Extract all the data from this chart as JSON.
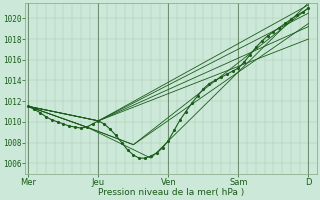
{
  "background_color": "#cce8d8",
  "plot_bg_color": "#cce8d8",
  "line_color": "#1a5c1a",
  "ylabel": "Pression niveau de la mer( hPa )",
  "ylim": [
    1005.0,
    1021.5
  ],
  "yticks": [
    1006,
    1008,
    1010,
    1012,
    1014,
    1016,
    1018,
    1020
  ],
  "xtick_labels": [
    "Mer",
    "Jeu",
    "Ven",
    "Sam",
    "D"
  ],
  "xtick_positions": [
    0,
    24,
    48,
    72,
    96
  ],
  "xmin": -1,
  "xmax": 99,
  "vgrid_minor": 3,
  "ensemble_lines": [
    [
      0,
      1011.5,
      24,
      1010.1,
      96,
      1021.3
    ],
    [
      0,
      1011.5,
      24,
      1010.1,
      96,
      1020.5
    ],
    [
      0,
      1011.5,
      24,
      1010.1,
      96,
      1019.2
    ],
    [
      0,
      1011.5,
      24,
      1010.1,
      96,
      1018.0
    ],
    [
      0,
      1011.5,
      20,
      1009.5,
      36,
      1007.8,
      96,
      1021.0
    ],
    [
      0,
      1011.5,
      20,
      1009.5,
      36,
      1007.8,
      96,
      1019.5
    ],
    [
      0,
      1011.5,
      20,
      1009.5,
      42,
      1006.5,
      96,
      1021.5
    ]
  ],
  "main_line": [
    0,
    1011.5,
    2,
    1011.2,
    4,
    1010.9,
    6,
    1010.5,
    8,
    1010.2,
    10,
    1010.0,
    12,
    1009.8,
    14,
    1009.6,
    16,
    1009.5,
    18,
    1009.4,
    20,
    1009.5,
    22,
    1009.8,
    24,
    1010.1,
    26,
    1009.8,
    28,
    1009.3,
    30,
    1008.7,
    32,
    1008.0,
    34,
    1007.3,
    36,
    1006.8,
    38,
    1006.5,
    40,
    1006.5,
    42,
    1006.7,
    44,
    1007.0,
    46,
    1007.5,
    48,
    1008.2,
    50,
    1009.2,
    52,
    1010.2,
    54,
    1011.0,
    56,
    1011.8,
    58,
    1012.5,
    60,
    1013.2,
    62,
    1013.7,
    64,
    1014.0,
    66,
    1014.3,
    68,
    1014.6,
    70,
    1014.9,
    72,
    1015.2,
    74,
    1015.8,
    76,
    1016.5,
    78,
    1017.2,
    80,
    1017.8,
    82,
    1018.3,
    84,
    1018.7,
    86,
    1019.1,
    88,
    1019.5,
    90,
    1019.9,
    92,
    1020.3,
    94,
    1020.6,
    96,
    1021.0
  ]
}
